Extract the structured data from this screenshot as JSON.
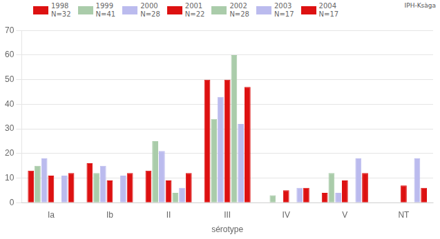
{
  "chart_data": {
    "type": "bar",
    "xlabel": "sérotype",
    "annotations": [
      "IPH-Ksàga"
    ],
    "categories": [
      "Ia",
      "Ib",
      "II",
      "III",
      "IV",
      "V",
      "NT"
    ],
    "series": [
      {
        "name": "1998\nN=32",
        "color": "#dd1111",
        "values": [
          13,
          16,
          13,
          50,
          0,
          4,
          0
        ]
      },
      {
        "name": "1999\nN=41",
        "color": "#aaccaa",
        "values": [
          15,
          12,
          25,
          34,
          3,
          12,
          0
        ]
      },
      {
        "name": "2000\nN=28",
        "color": "#bbbbee",
        "values": [
          18,
          15,
          21,
          43,
          0,
          4,
          0
        ]
      },
      {
        "name": "2001\nN=22",
        "color": "#dd1111",
        "values": [
          11,
          9,
          9,
          50,
          5,
          9,
          7
        ]
      },
      {
        "name": "2002\nN=28",
        "color": "#aaccaa",
        "values": [
          0,
          0,
          4,
          60,
          0,
          0,
          0
        ]
      },
      {
        "name": "2003\nN=17",
        "color": "#bbbbee",
        "values": [
          11,
          11,
          6,
          32,
          6,
          18,
          18
        ]
      },
      {
        "name": "2004\nN=17",
        "color": "#dd1111",
        "values": [
          12,
          12,
          12,
          47,
          6,
          12,
          6
        ]
      }
    ],
    "ylim": [
      0,
      70
    ],
    "yticks": [
      0,
      10,
      20,
      30,
      40,
      50,
      60,
      70
    ],
    "grid": true,
    "legend": "upper left"
  }
}
